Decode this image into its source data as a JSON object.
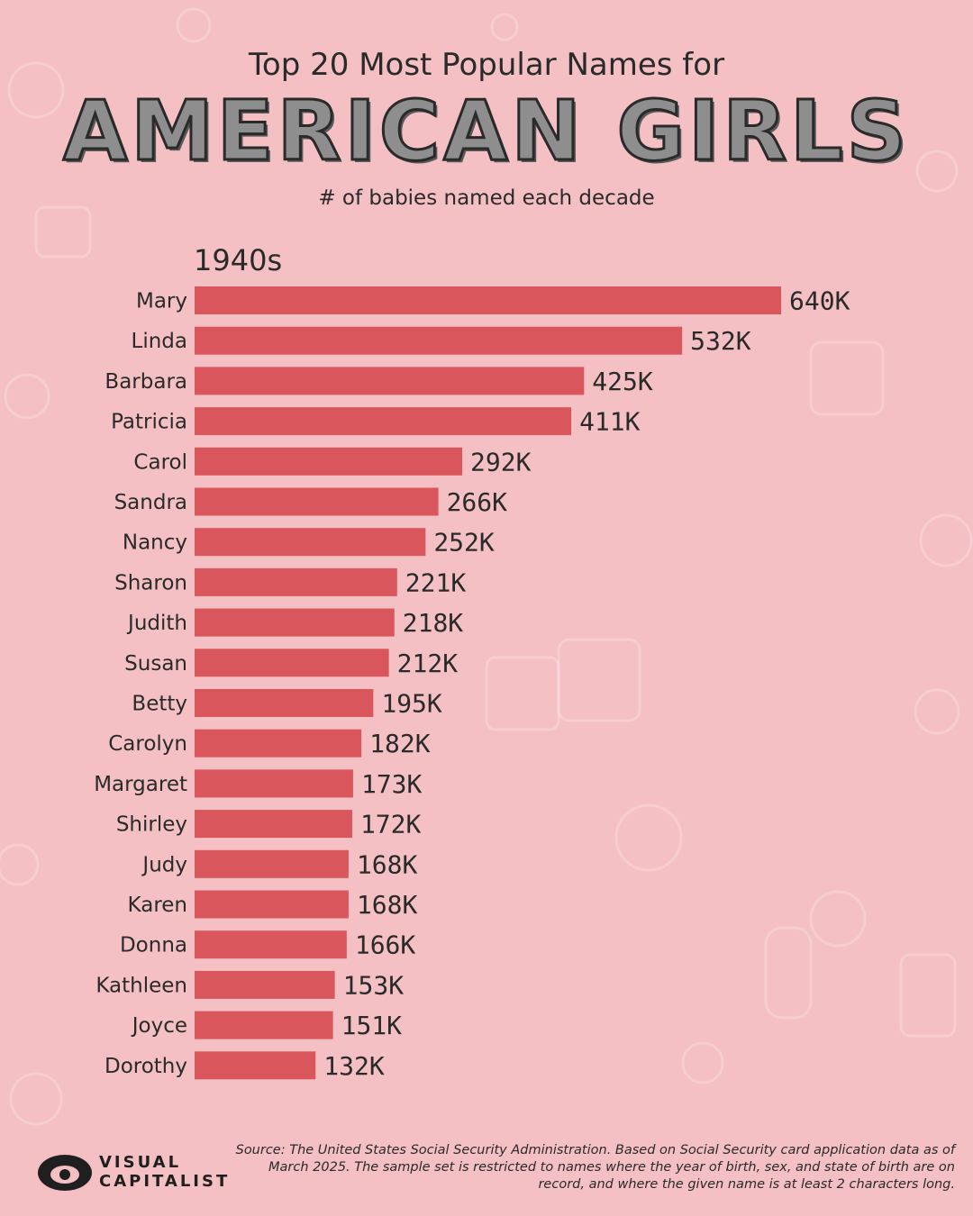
{
  "header": {
    "pre_title": "Top 20 Most Popular Names for",
    "title": "AMERICAN GIRLS",
    "subtitle": "# of babies named each decade"
  },
  "chart_data": {
    "type": "bar",
    "orientation": "horizontal",
    "decade_label": "1940s",
    "categories": [
      "Mary",
      "Linda",
      "Barbara",
      "Patricia",
      "Carol",
      "Sandra",
      "Nancy",
      "Sharon",
      "Judith",
      "Susan",
      "Betty",
      "Carolyn",
      "Margaret",
      "Shirley",
      "Judy",
      "Karen",
      "Donna",
      "Kathleen",
      "Joyce",
      "Dorothy"
    ],
    "values": [
      640,
      532,
      425,
      411,
      292,
      266,
      252,
      221,
      218,
      212,
      195,
      182,
      173,
      172,
      168,
      168,
      166,
      153,
      151,
      132
    ],
    "value_labels": [
      "640K",
      "532K",
      "425K",
      "411K",
      "292K",
      "266K",
      "252K",
      "221K",
      "218K",
      "212K",
      "195K",
      "182K",
      "173K",
      "172K",
      "168K",
      "168K",
      "166K",
      "153K",
      "151K",
      "132K"
    ],
    "unit": "K",
    "xlim": [
      0,
      640
    ],
    "bar_color": "#d9575c",
    "grid": false,
    "legend": "none"
  },
  "footer": {
    "source": "Source: The United States Social Security Administration. Based on Social Security card application data as of March 2025. The sample set is restricted to names where the year of birth, sex, and state of birth are on record, and where the given name is at least 2 characters long.",
    "logo_line1": "VISUAL",
    "logo_line2": "CAPITALIST"
  },
  "icons": [
    "baby-doodle-pattern-icon",
    "visual-capitalist-logo-icon"
  ],
  "colors": {
    "background": "#f4c0c3",
    "bar": "#d9575c",
    "text": "#2a2a2a"
  }
}
